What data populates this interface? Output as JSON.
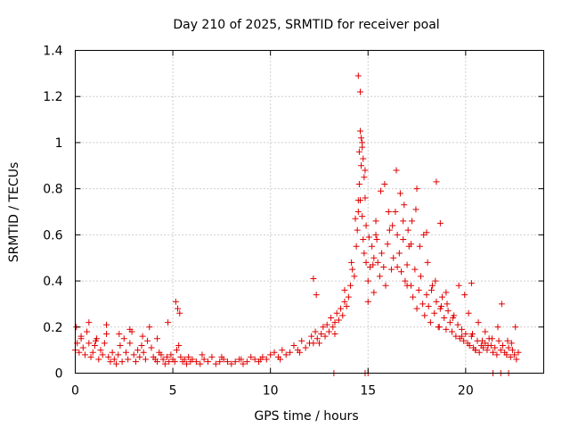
{
  "chart_data": {
    "type": "scatter",
    "title": "Day 210 of 2025, SRMTID for receiver poal",
    "xlabel": "GPS time / hours",
    "ylabel": "SRMTID / TECUs",
    "xlim": [
      0,
      24
    ],
    "ylim": [
      0,
      1.4
    ],
    "x_ticks": [
      0,
      5,
      10,
      15,
      20
    ],
    "x_tick_labels": [
      "0",
      "5",
      "10",
      "15",
      "20"
    ],
    "y_ticks": [
      0,
      0.2,
      0.4,
      0.6,
      0.8,
      1.0,
      1.2,
      1.4
    ],
    "y_tick_labels": [
      "0",
      "0.2",
      "0.4",
      "0.6",
      "0.8",
      "1",
      "1.2",
      "1.4"
    ],
    "grid": true,
    "marker": "+",
    "series": [
      {
        "name": "SRMTID",
        "color": "#e00000",
        "x": [
          0.0,
          0.1,
          0.2,
          0.3,
          0.4,
          0.5,
          0.6,
          0.7,
          0.8,
          0.9,
          1.0,
          1.1,
          1.2,
          1.3,
          1.4,
          1.5,
          1.6,
          1.7,
          1.8,
          1.9,
          2.0,
          2.1,
          2.2,
          2.3,
          2.4,
          2.5,
          2.6,
          2.7,
          2.8,
          2.9,
          3.0,
          3.1,
          3.2,
          3.3,
          3.4,
          3.5,
          3.6,
          3.7,
          3.8,
          3.9,
          4.0,
          4.1,
          4.2,
          4.3,
          4.4,
          4.5,
          4.6,
          4.7,
          4.8,
          4.9,
          5.0,
          5.1,
          5.2,
          5.3,
          5.4,
          5.5,
          5.6,
          5.7,
          5.8,
          5.9,
          6.0,
          6.2,
          6.4,
          6.6,
          6.8,
          7.0,
          7.2,
          7.4,
          7.6,
          7.8,
          8.0,
          8.2,
          8.4,
          8.6,
          8.8,
          9.0,
          9.2,
          9.4,
          9.6,
          9.8,
          10.0,
          10.2,
          10.4,
          10.6,
          10.8,
          11.0,
          11.2,
          11.4,
          11.6,
          11.8,
          12.0,
          12.1,
          12.2,
          12.3,
          12.4,
          12.5,
          12.6,
          12.7,
          12.8,
          12.9,
          13.0,
          13.1,
          13.2,
          13.3,
          13.4,
          13.5,
          13.6,
          13.7,
          13.8,
          13.9,
          14.0,
          14.1,
          14.2,
          14.3,
          14.4,
          14.45,
          14.5,
          14.55,
          14.6,
          14.65,
          14.7,
          14.75,
          14.8,
          14.9,
          15.0,
          15.1,
          15.2,
          15.3,
          15.4,
          15.5,
          15.6,
          15.7,
          15.8,
          15.9,
          16.0,
          16.1,
          16.2,
          16.3,
          16.4,
          16.5,
          16.6,
          16.7,
          16.8,
          16.9,
          17.0,
          17.1,
          17.2,
          17.3,
          17.4,
          17.5,
          17.6,
          17.7,
          17.8,
          17.9,
          18.0,
          18.1,
          18.2,
          18.3,
          18.4,
          18.5,
          18.6,
          18.7,
          18.8,
          18.9,
          19.0,
          19.1,
          19.2,
          19.3,
          19.4,
          19.5,
          19.6,
          19.7,
          19.8,
          19.9,
          20.0,
          20.1,
          20.2,
          20.3,
          20.4,
          20.5,
          20.6,
          20.7,
          20.8,
          20.9,
          21.0,
          21.1,
          21.2,
          21.3,
          21.4,
          21.5,
          21.6,
          21.7,
          21.8,
          21.9,
          22.0,
          22.1,
          22.2,
          22.3,
          22.4,
          22.5,
          22.6,
          22.7,
          0.05,
          0.3,
          0.7,
          1.05,
          1.6,
          2.25,
          2.8,
          3.45,
          4.2,
          4.75,
          5.15,
          5.25,
          5.35,
          6.5,
          7.5,
          8.5,
          9.5,
          10.5,
          11.5,
          12.2,
          12.35,
          13.3,
          13.8,
          14.15,
          14.35,
          14.5,
          14.6,
          14.7,
          14.85,
          15.05,
          15.25,
          15.45,
          15.65,
          15.85,
          16.05,
          16.25,
          16.45,
          16.65,
          16.85,
          17.05,
          17.25,
          17.45,
          17.65,
          17.85,
          18.05,
          18.25,
          18.45,
          18.65,
          18.75,
          19.05,
          19.35,
          19.65,
          19.95,
          20.15,
          20.35,
          20.65,
          20.85,
          21.15,
          21.35,
          21.65,
          21.85,
          22.15,
          22.35,
          22.55,
          14.5,
          14.55,
          14.6,
          14.65,
          14.7,
          14.75,
          14.8,
          14.85,
          14.9,
          15.0,
          15.3,
          15.4,
          16.5,
          16.8,
          17.0,
          17.2,
          17.5,
          18.0,
          18.5,
          18.7,
          19.0,
          19.8,
          20.3,
          20.5,
          21.0,
          13.25,
          14.85,
          15.0,
          21.4,
          21.8,
          22.2
        ],
        "y": [
          0.1,
          0.13,
          0.09,
          0.16,
          0.11,
          0.08,
          0.18,
          0.13,
          0.07,
          0.09,
          0.12,
          0.15,
          0.06,
          0.1,
          0.08,
          0.13,
          0.17,
          0.07,
          0.05,
          0.09,
          0.06,
          0.04,
          0.08,
          0.12,
          0.05,
          0.15,
          0.09,
          0.06,
          0.13,
          0.18,
          0.08,
          0.05,
          0.1,
          0.07,
          0.12,
          0.09,
          0.06,
          0.14,
          0.2,
          0.11,
          0.07,
          0.06,
          0.05,
          0.09,
          0.08,
          0.06,
          0.04,
          0.07,
          0.05,
          0.08,
          0.06,
          0.05,
          0.1,
          0.12,
          0.07,
          0.05,
          0.06,
          0.04,
          0.07,
          0.05,
          0.06,
          0.05,
          0.04,
          0.06,
          0.05,
          0.07,
          0.04,
          0.05,
          0.06,
          0.05,
          0.04,
          0.05,
          0.06,
          0.04,
          0.05,
          0.07,
          0.06,
          0.05,
          0.07,
          0.06,
          0.08,
          0.09,
          0.07,
          0.1,
          0.08,
          0.09,
          0.12,
          0.1,
          0.14,
          0.11,
          0.13,
          0.16,
          0.13,
          0.18,
          0.15,
          0.13,
          0.17,
          0.2,
          0.16,
          0.21,
          0.18,
          0.24,
          0.2,
          0.22,
          0.26,
          0.23,
          0.28,
          0.25,
          0.31,
          0.29,
          0.33,
          0.38,
          0.45,
          0.42,
          0.55,
          0.62,
          0.7,
          0.82,
          0.75,
          0.9,
          0.68,
          0.58,
          0.52,
          0.48,
          0.4,
          0.46,
          0.55,
          0.5,
          0.6,
          0.48,
          0.42,
          0.52,
          0.46,
          0.38,
          0.56,
          0.62,
          0.45,
          0.5,
          0.7,
          0.6,
          0.52,
          0.44,
          0.58,
          0.4,
          0.47,
          0.55,
          0.38,
          0.33,
          0.45,
          0.28,
          0.36,
          0.42,
          0.3,
          0.25,
          0.34,
          0.29,
          0.22,
          0.38,
          0.26,
          0.31,
          0.2,
          0.28,
          0.33,
          0.24,
          0.19,
          0.27,
          0.22,
          0.18,
          0.25,
          0.16,
          0.21,
          0.15,
          0.19,
          0.14,
          0.17,
          0.13,
          0.12,
          0.16,
          0.11,
          0.1,
          0.14,
          0.09,
          0.12,
          0.11,
          0.13,
          0.1,
          0.15,
          0.12,
          0.09,
          0.11,
          0.08,
          0.14,
          0.1,
          0.12,
          0.09,
          0.08,
          0.11,
          0.07,
          0.1,
          0.08,
          0.06,
          0.09,
          0.2,
          0.15,
          0.22,
          0.14,
          0.21,
          0.17,
          0.19,
          0.16,
          0.15,
          0.22,
          0.31,
          0.28,
          0.26,
          0.08,
          0.07,
          0.06,
          0.06,
          0.06,
          0.09,
          0.41,
          0.34,
          0.17,
          0.36,
          0.48,
          0.67,
          1.29,
          1.22,
          0.98,
          0.76,
          0.59,
          0.47,
          0.58,
          0.79,
          0.82,
          0.7,
          0.64,
          0.88,
          0.78,
          0.73,
          0.62,
          0.66,
          0.71,
          0.55,
          0.6,
          0.48,
          0.36,
          0.4,
          0.2,
          0.29,
          0.3,
          0.24,
          0.38,
          0.34,
          0.26,
          0.17,
          0.22,
          0.14,
          0.12,
          0.15,
          0.2,
          0.3,
          0.14,
          0.13,
          0.2,
          0.75,
          0.96,
          1.05,
          1.02,
          1.0,
          0.93,
          0.85,
          0.88,
          0.64,
          0.31,
          0.35,
          0.66,
          0.46,
          0.66,
          0.38,
          0.56,
          0.8,
          0.61,
          0.83,
          0.65,
          0.35,
          0.16,
          0.39,
          0.1,
          0.18,
          0.0,
          0.0,
          0.0,
          0.0,
          0.0,
          0.0
        ]
      }
    ]
  }
}
